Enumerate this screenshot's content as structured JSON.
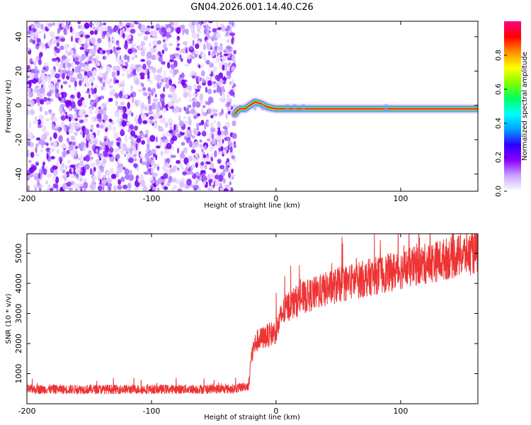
{
  "title": "GN04.2026.001.14.40.C26",
  "chart_data": [
    {
      "type": "heatmap",
      "name": "spectrogram",
      "xlabel": "Height of straight line (km)",
      "ylabel": "Frequency (Hz)",
      "xlim": [
        -200,
        162
      ],
      "ylim": [
        -50,
        49
      ],
      "xticks": [
        -200,
        -100,
        0,
        100
      ],
      "yticks": [
        -40,
        -20,
        0,
        20,
        40
      ],
      "noise_region": {
        "x_range": [
          -200,
          -33
        ],
        "y_range": [
          -50,
          49
        ]
      },
      "signal": {
        "x_start": -33,
        "x_end": 162,
        "segments": [
          {
            "x": -33,
            "f": -5
          },
          {
            "x": -31,
            "f": -3
          },
          {
            "x": -29,
            "f": -2
          },
          {
            "x": -25,
            "f": -2
          },
          {
            "x": -21,
            "f": 0
          },
          {
            "x": -17,
            "f": 2
          },
          {
            "x": -12,
            "f": 1
          },
          {
            "x": -7,
            "f": -1
          },
          {
            "x": 0,
            "f": -2
          },
          {
            "x": 30,
            "f": -2
          },
          {
            "x": 90,
            "f": -2
          },
          {
            "x": 162,
            "f": -2
          }
        ]
      },
      "colorbar": {
        "label": "Normalized spectral amplitude",
        "range": [
          0,
          1
        ],
        "ticks": [
          0.0,
          0.2,
          0.4,
          0.6,
          0.8
        ],
        "tick_labels": [
          "0.0",
          "0.2",
          "0.4",
          "0.6",
          "0.8"
        ],
        "colors": [
          "#ffffff",
          "#c9a6ff",
          "#8c00ff",
          "#2b00ff",
          "#00a0ff",
          "#00ffff",
          "#00ff60",
          "#80ff00",
          "#ffff00",
          "#ff9000",
          "#ff0000",
          "#ff0080"
        ]
      }
    },
    {
      "type": "line",
      "name": "snr",
      "xlabel": "Height of straight line (km)",
      "ylabel": "SNR (10 * v/v)",
      "xlim": [
        -200,
        162
      ],
      "ylim": [
        0,
        5650
      ],
      "xticks": [
        -200,
        -100,
        0,
        100
      ],
      "yticks": [
        1000,
        2000,
        3000,
        4000,
        5000
      ],
      "color": "#ee3333",
      "series": [
        {
          "name": "SNR",
          "x": [
            -200,
            -100,
            -35,
            -22,
            -20,
            -18,
            -15,
            -10,
            -5,
            0,
            5,
            10,
            20,
            30,
            40,
            50,
            60,
            70,
            80,
            90,
            100,
            110,
            120,
            130,
            140,
            150,
            162
          ],
          "y": [
            480,
            480,
            490,
            600,
            1500,
            1900,
            2100,
            2200,
            2300,
            2400,
            3000,
            3250,
            3500,
            3650,
            3800,
            3950,
            4050,
            4150,
            4250,
            4350,
            4450,
            4550,
            4650,
            4750,
            4850,
            4950,
            5050
          ]
        }
      ],
      "noise_amplitude": 150
    }
  ]
}
